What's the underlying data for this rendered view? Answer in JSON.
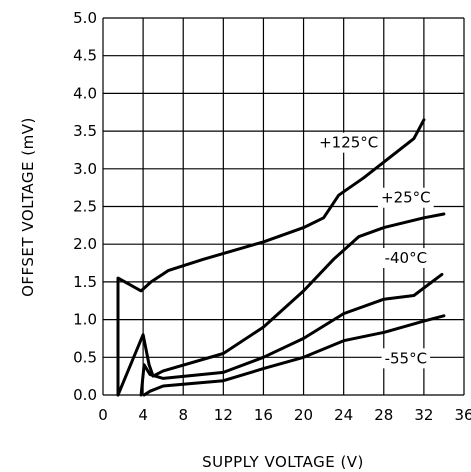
{
  "chart_data": {
    "type": "line",
    "title": "",
    "xlabel": "SUPPLY VOLTAGE (V)",
    "ylabel": "OFFSET VOLTAGE (mV)",
    "xlim": [
      0,
      36
    ],
    "ylim": [
      0,
      5.0
    ],
    "grid": true,
    "xticks": [
      0,
      4,
      8,
      12,
      16,
      20,
      24,
      28,
      32,
      36
    ],
    "xtick_labels": [
      "0",
      "4",
      "8",
      "12",
      "16",
      "20",
      "24",
      "28",
      "32",
      "36"
    ],
    "yticks": [
      0,
      0.5,
      1.0,
      1.5,
      2.0,
      2.5,
      3.0,
      3.5,
      4.0,
      4.5,
      5.0
    ],
    "ytick_labels": [
      "0.0",
      "0.5",
      "1.0",
      "1.5",
      "2.0",
      "2.5",
      "3.0",
      "3.5",
      "4.0",
      "4.5",
      "5.0"
    ],
    "series": [
      {
        "name": "+125°C",
        "label_at": [
          24.5,
          3.28
        ],
        "points": [
          [
            1.5,
            0
          ],
          [
            1.5,
            1.55
          ],
          [
            3.8,
            1.38
          ],
          [
            4.8,
            1.5
          ],
          [
            6.5,
            1.65
          ],
          [
            10,
            1.8
          ],
          [
            16,
            2.03
          ],
          [
            20,
            2.22
          ],
          [
            22,
            2.35
          ],
          [
            23.5,
            2.65
          ],
          [
            26,
            2.88
          ],
          [
            31,
            3.4
          ],
          [
            32,
            3.65
          ]
        ]
      },
      {
        "name": "+25°C",
        "label_at": [
          30.2,
          2.55
        ],
        "points": [
          [
            1.5,
            0
          ],
          [
            4,
            0.8
          ],
          [
            4.6,
            0.4
          ],
          [
            5,
            0.25
          ],
          [
            6,
            0.32
          ],
          [
            12,
            0.55
          ],
          [
            16,
            0.9
          ],
          [
            20,
            1.38
          ],
          [
            23,
            1.8
          ],
          [
            25.5,
            2.1
          ],
          [
            28,
            2.22
          ],
          [
            32,
            2.35
          ],
          [
            34,
            2.4
          ]
        ]
      },
      {
        "name": "-40°C",
        "label_at": [
          30.2,
          1.75
        ],
        "points": [
          [
            3.8,
            0
          ],
          [
            4.1,
            0.4
          ],
          [
            4.7,
            0.27
          ],
          [
            6,
            0.22
          ],
          [
            12,
            0.3
          ],
          [
            16,
            0.5
          ],
          [
            20,
            0.75
          ],
          [
            24,
            1.08
          ],
          [
            28,
            1.27
          ],
          [
            31,
            1.32
          ],
          [
            33.8,
            1.6
          ]
        ]
      },
      {
        "name": "-55°C",
        "label_at": [
          30.2,
          0.42
        ],
        "points": [
          [
            4.1,
            0
          ],
          [
            4.7,
            0.05
          ],
          [
            6,
            0.12
          ],
          [
            12,
            0.19
          ],
          [
            16,
            0.35
          ],
          [
            20,
            0.5
          ],
          [
            24,
            0.72
          ],
          [
            28,
            0.83
          ],
          [
            32,
            0.98
          ],
          [
            34,
            1.05
          ]
        ]
      }
    ]
  }
}
